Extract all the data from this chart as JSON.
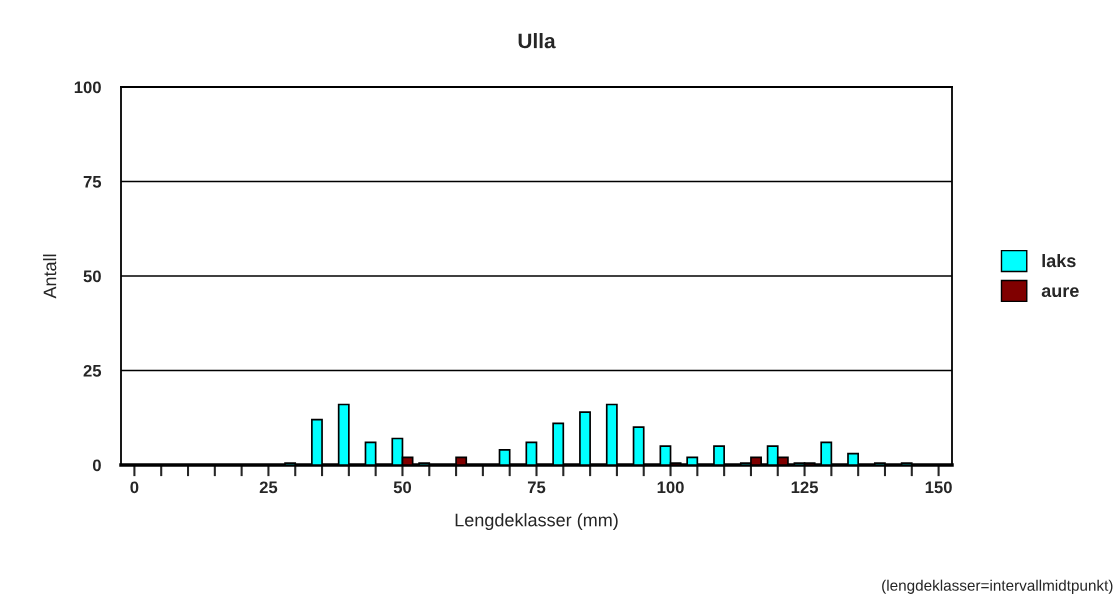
{
  "chart_data": {
    "type": "bar",
    "title": "Ulla",
    "xlabel": "Lengdeklasser (mm)",
    "ylabel": "Antall",
    "x": [
      30,
      35,
      40,
      45,
      50,
      55,
      60,
      65,
      70,
      75,
      80,
      85,
      90,
      95,
      100,
      105,
      110,
      115,
      120,
      125,
      130,
      135,
      140,
      145
    ],
    "series": [
      {
        "name": "laks",
        "color": "#00ffff",
        "values": [
          0.5,
          12,
          16,
          6,
          7,
          0.5,
          null,
          null,
          4,
          6,
          11,
          14,
          16,
          10,
          5,
          2,
          5,
          0.5,
          5,
          0.5,
          6,
          3,
          0.5,
          0.5
        ]
      },
      {
        "name": "aure",
        "color": "#800000",
        "values": [
          null,
          null,
          null,
          null,
          2,
          null,
          2,
          null,
          null,
          null,
          null,
          null,
          null,
          null,
          0.5,
          null,
          null,
          2,
          2,
          0.5,
          null,
          null,
          null,
          null
        ]
      }
    ],
    "xlim": [
      -2.5,
      152.5
    ],
    "xticks": [
      0,
      {
        "value": 5,
        "label": null
      },
      {
        "value": 10,
        "label": null
      },
      {
        "value": 15,
        "label": null
      },
      {
        "value": 20,
        "label": null
      },
      25,
      {
        "value": 30,
        "label": null
      },
      {
        "value": 35,
        "label": null
      },
      {
        "value": 40,
        "label": null
      },
      {
        "value": 45,
        "label": null
      },
      50,
      {
        "value": 55,
        "label": null
      },
      {
        "value": 60,
        "label": null
      },
      {
        "value": 65,
        "label": null
      },
      {
        "value": 70,
        "label": null
      },
      75,
      {
        "value": 80,
        "label": null
      },
      {
        "value": 85,
        "label": null
      },
      {
        "value": 90,
        "label": null
      },
      {
        "value": 95,
        "label": null
      },
      100,
      {
        "value": 105,
        "label": null
      },
      {
        "value": 110,
        "label": null
      },
      {
        "value": 115,
        "label": null
      },
      {
        "value": 120,
        "label": null
      },
      125,
      {
        "value": 130,
        "label": null
      },
      {
        "value": 135,
        "label": null
      },
      {
        "value": 140,
        "label": null
      },
      {
        "value": 145,
        "label": null
      },
      150
    ],
    "ylim": [
      0,
      100
    ],
    "yticks": [
      0,
      25,
      50,
      75,
      100
    ],
    "grid": "y",
    "legend": "right",
    "annotations": [
      "(lengdeklasser=intervallmidtpunkt)"
    ]
  }
}
